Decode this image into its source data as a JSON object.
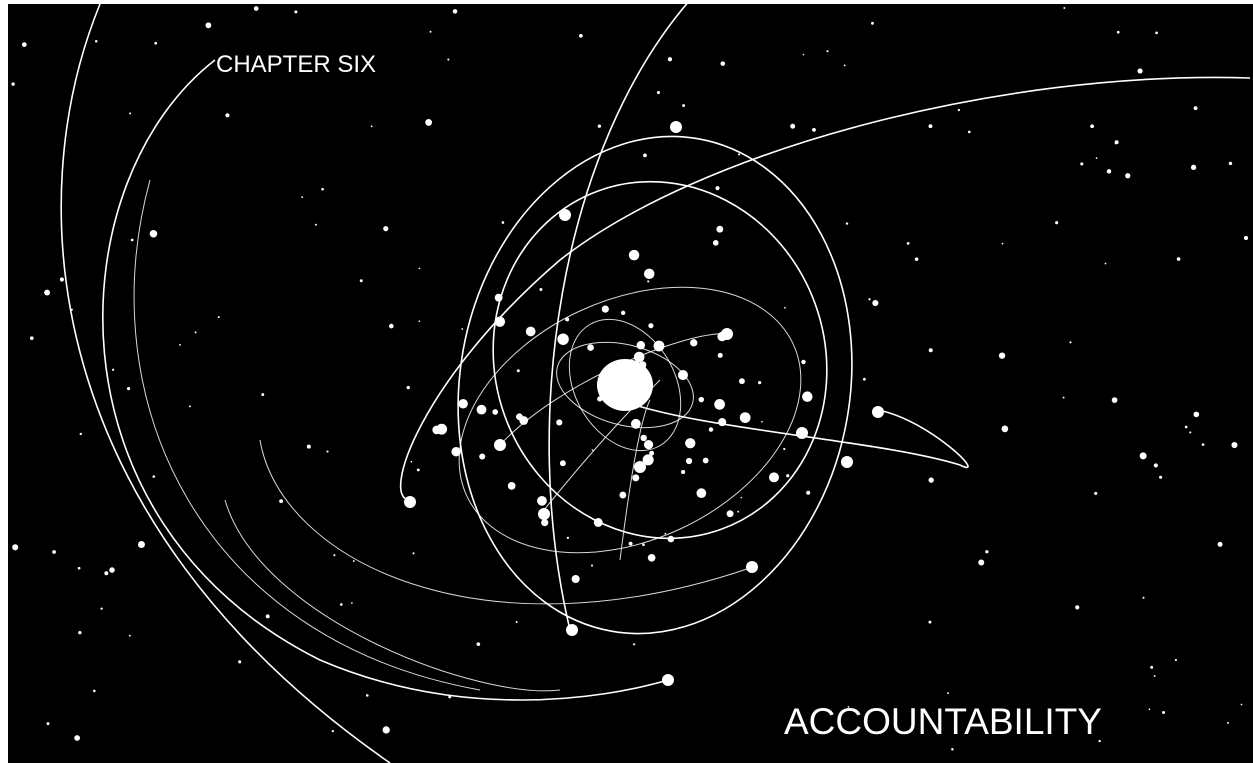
{
  "chapter": "CHAPTER SIX",
  "title": "ACCOUNTABILITY"
}
